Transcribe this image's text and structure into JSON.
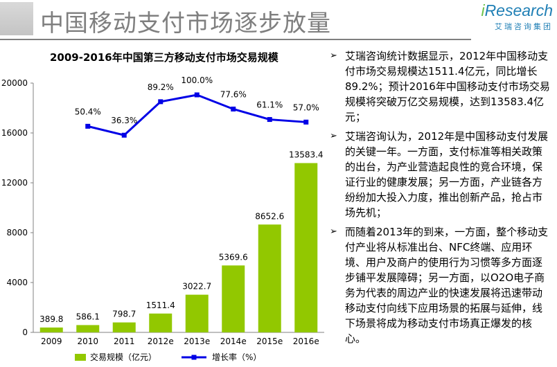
{
  "header": {
    "title": "中国移动支付市场逐步放量",
    "logo_i": "i",
    "logo_rest": "Research",
    "logo_sub": "艾瑞咨询集团"
  },
  "chart_data": {
    "type": "bar",
    "title": "2009-2016年中国第三方移动支付市场交易规模",
    "categories": [
      "2009",
      "2010",
      "2011",
      "2012e",
      "2013e",
      "2014e",
      "2015e",
      "2016e"
    ],
    "series": [
      {
        "name": "交易规模（亿元）",
        "type": "bar",
        "values": [
          389.8,
          586.1,
          798.7,
          1511.4,
          3022.7,
          5369.6,
          8652.6,
          13583.4
        ],
        "labels": [
          "389.8",
          "586.1",
          "798.7",
          "1511.4",
          "3022.7",
          "5369.6",
          "8652.6",
          "13583.4"
        ],
        "color": "#92c800"
      },
      {
        "name": "增长率（%）",
        "type": "line",
        "x": [
          "2010",
          "2011",
          "2012e",
          "2013e",
          "2014e",
          "2015e",
          "2016e"
        ],
        "values": [
          50.4,
          36.3,
          89.2,
          100.0,
          77.6,
          61.1,
          57.0
        ],
        "labels": [
          "50.4%",
          "36.3%",
          "89.2%",
          "100.0%",
          "77.6%",
          "61.1%",
          "57.0%"
        ],
        "color": "#0000e6"
      }
    ],
    "ylim": [
      0,
      20000
    ],
    "yticks": [
      "0",
      "4000",
      "8000",
      "12000",
      "16000",
      "20000"
    ],
    "legend_position": "bottom",
    "grid": false
  },
  "bullets": [
    "艾瑞咨询统计数据显示，2012年中国移动支付市场交易规模达1511.4亿元，同比增长89.2%；预计2016年中国移动支付市场交易规模将突破万亿交易规模，达到13583.4亿元；",
    "艾瑞咨询认为，2012年是中国移动支付发展的关键一年。一方面，支付标准等相关政策的出台，为产业营造起良性的竞合环境，保证行业的健康发展；另一方面，产业链各方纷纷加大投入力度，推出创新产品，抢占市场先机；",
    "而随着2013年的到来，一方面，整个移动支付产业将从标准出台、NFC终端、应用环境、用户及商户的使用行为习惯等多方面逐步铺平发展障碍；另一方面，以O2O电子商务为代表的周边产业的快速发展将迅速带动移动支付向线下应用场景的拓展与延伸，线下场景将成为移动支付市场真正爆发的核心。"
  ],
  "bullet_marker": "➢"
}
